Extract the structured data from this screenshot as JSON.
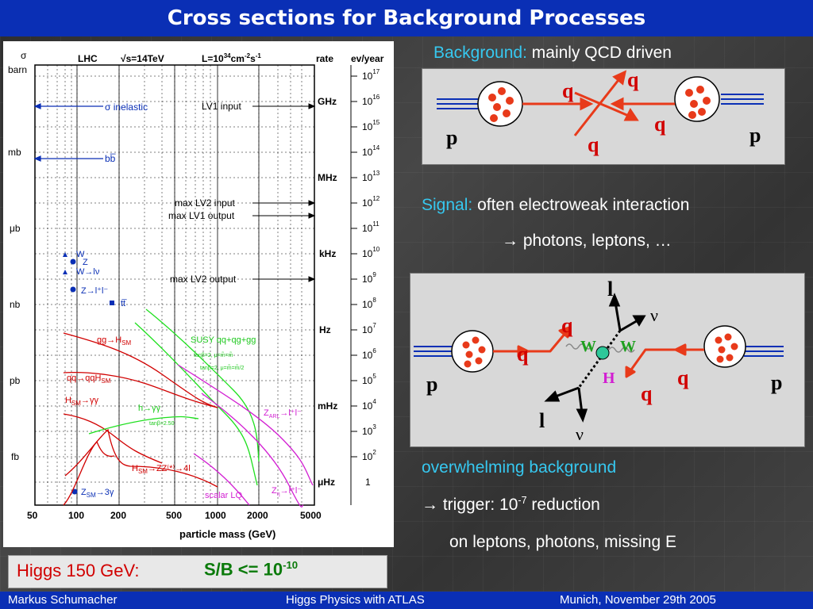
{
  "slide": {
    "title": "Cross sections for Background Processes",
    "background_label": "Background:",
    "background_text": "mainly QCD driven",
    "signal_label": "Signal:",
    "signal_text": "often electroweak interaction",
    "signal_arrow_text": "→ photons, leptons, …",
    "overwhelming": "overwhelming background",
    "trigger_pre": "→ trigger: 10",
    "trigger_exp": "-7",
    "trigger_post": " reduction",
    "on_leptons": "on leptons, photons, missing E",
    "higgs_label": "Higgs 150 GeV:",
    "sb_text": "S/B <= 10",
    "sb_exp": "-10"
  },
  "footer": {
    "author": "Markus  Schumacher",
    "talk": "Higgs Physics  with ATLAS",
    "place_date": "Munich, November 29th 2005"
  },
  "diagram_bg": {
    "p_left": "p",
    "p_right": "p",
    "q1": "q",
    "q2": "q",
    "q3": "q",
    "q4": "q"
  },
  "diagram_sig": {
    "p_left": "p",
    "p_right": "p",
    "q1": "q",
    "q2": "q",
    "q3": "q",
    "q4": "q",
    "w1": "W",
    "w2": "W",
    "h": "H",
    "l1": "l",
    "l2": "l",
    "nu1": "ν",
    "nu2": "ν"
  },
  "chart": {
    "header_sigma": "σ",
    "header_barn": "barn",
    "header_lhc": "LHC",
    "header_sqrt": "√s=14TeV",
    "header_lumi": "L=10",
    "header_lumi_exp": "34",
    "header_lumi_unit": "cm",
    "header_lumi_unit_exp": "-2",
    "header_lumi_s": "s",
    "header_lumi_s_exp": "-1",
    "header_rate": "rate",
    "header_evyear": "ev/year",
    "left_units": [
      "mb",
      "μb",
      "nb",
      "pb",
      "fb"
    ],
    "rate_units": [
      "GHz",
      "MHz",
      "kHz",
      "Hz",
      "mHz",
      "μHz"
    ],
    "ev_exps": [
      "17",
      "16",
      "15",
      "14",
      "13",
      "12",
      "11",
      "10",
      "9",
      "8",
      "7",
      "6",
      "5",
      "4",
      "3",
      "2"
    ],
    "ev_base": "10",
    "ev_last": "1",
    "x_ticks": [
      "50",
      "100",
      "200",
      "500",
      "1000",
      "2000",
      "5000"
    ],
    "xlabel": "particle mass (GeV)",
    "labels": {
      "inelastic": "σ inelastic",
      "bb": "bb̅",
      "lv1in": "LV1 input",
      "maxlv2in": "max LV2 input",
      "maxlv1out": "max LV1 output",
      "maxlv2out": "max LV2 output",
      "w": "W",
      "z": "Z",
      "wlv": "W→lν",
      "zll": "Z→l⁺l⁻",
      "tt": "tt̅",
      "gghsm": "gg→H",
      "sm": "SM",
      "qqqqh": "qq→qqH",
      "hsmgg": "H",
      "hsmgg2": "→γγ",
      "hgg_susy": "h→γγ",
      "susy": "SUSY qq+qg+gg",
      "zarl": "Z",
      "zarl_sub": "ARL",
      "zarl2": "→l⁺l⁻",
      "hsmzz": "H",
      "hsmzz2": "→ZZ⁽*⁾→4l",
      "zsm3g": "Z",
      "zsm3g_sub": "SM",
      "zsm3g2": "→3γ",
      "scalarlq": "scalar LQ",
      "zeta": "Z",
      "zeta_sub": "η",
      "zeta2": "→l⁺l⁻",
      "tanb": "tanβ=2.50",
      "susy_small1": "tanβ=2, μ=m̃=m̃",
      "susy_small2": "tanβ=2, μ=m̃=m̃/2"
    }
  },
  "colors": {
    "title_bar": "#0a2fb5",
    "cyan": "#36c8f0",
    "red": "#d10000",
    "green": "#0a7a0a"
  }
}
